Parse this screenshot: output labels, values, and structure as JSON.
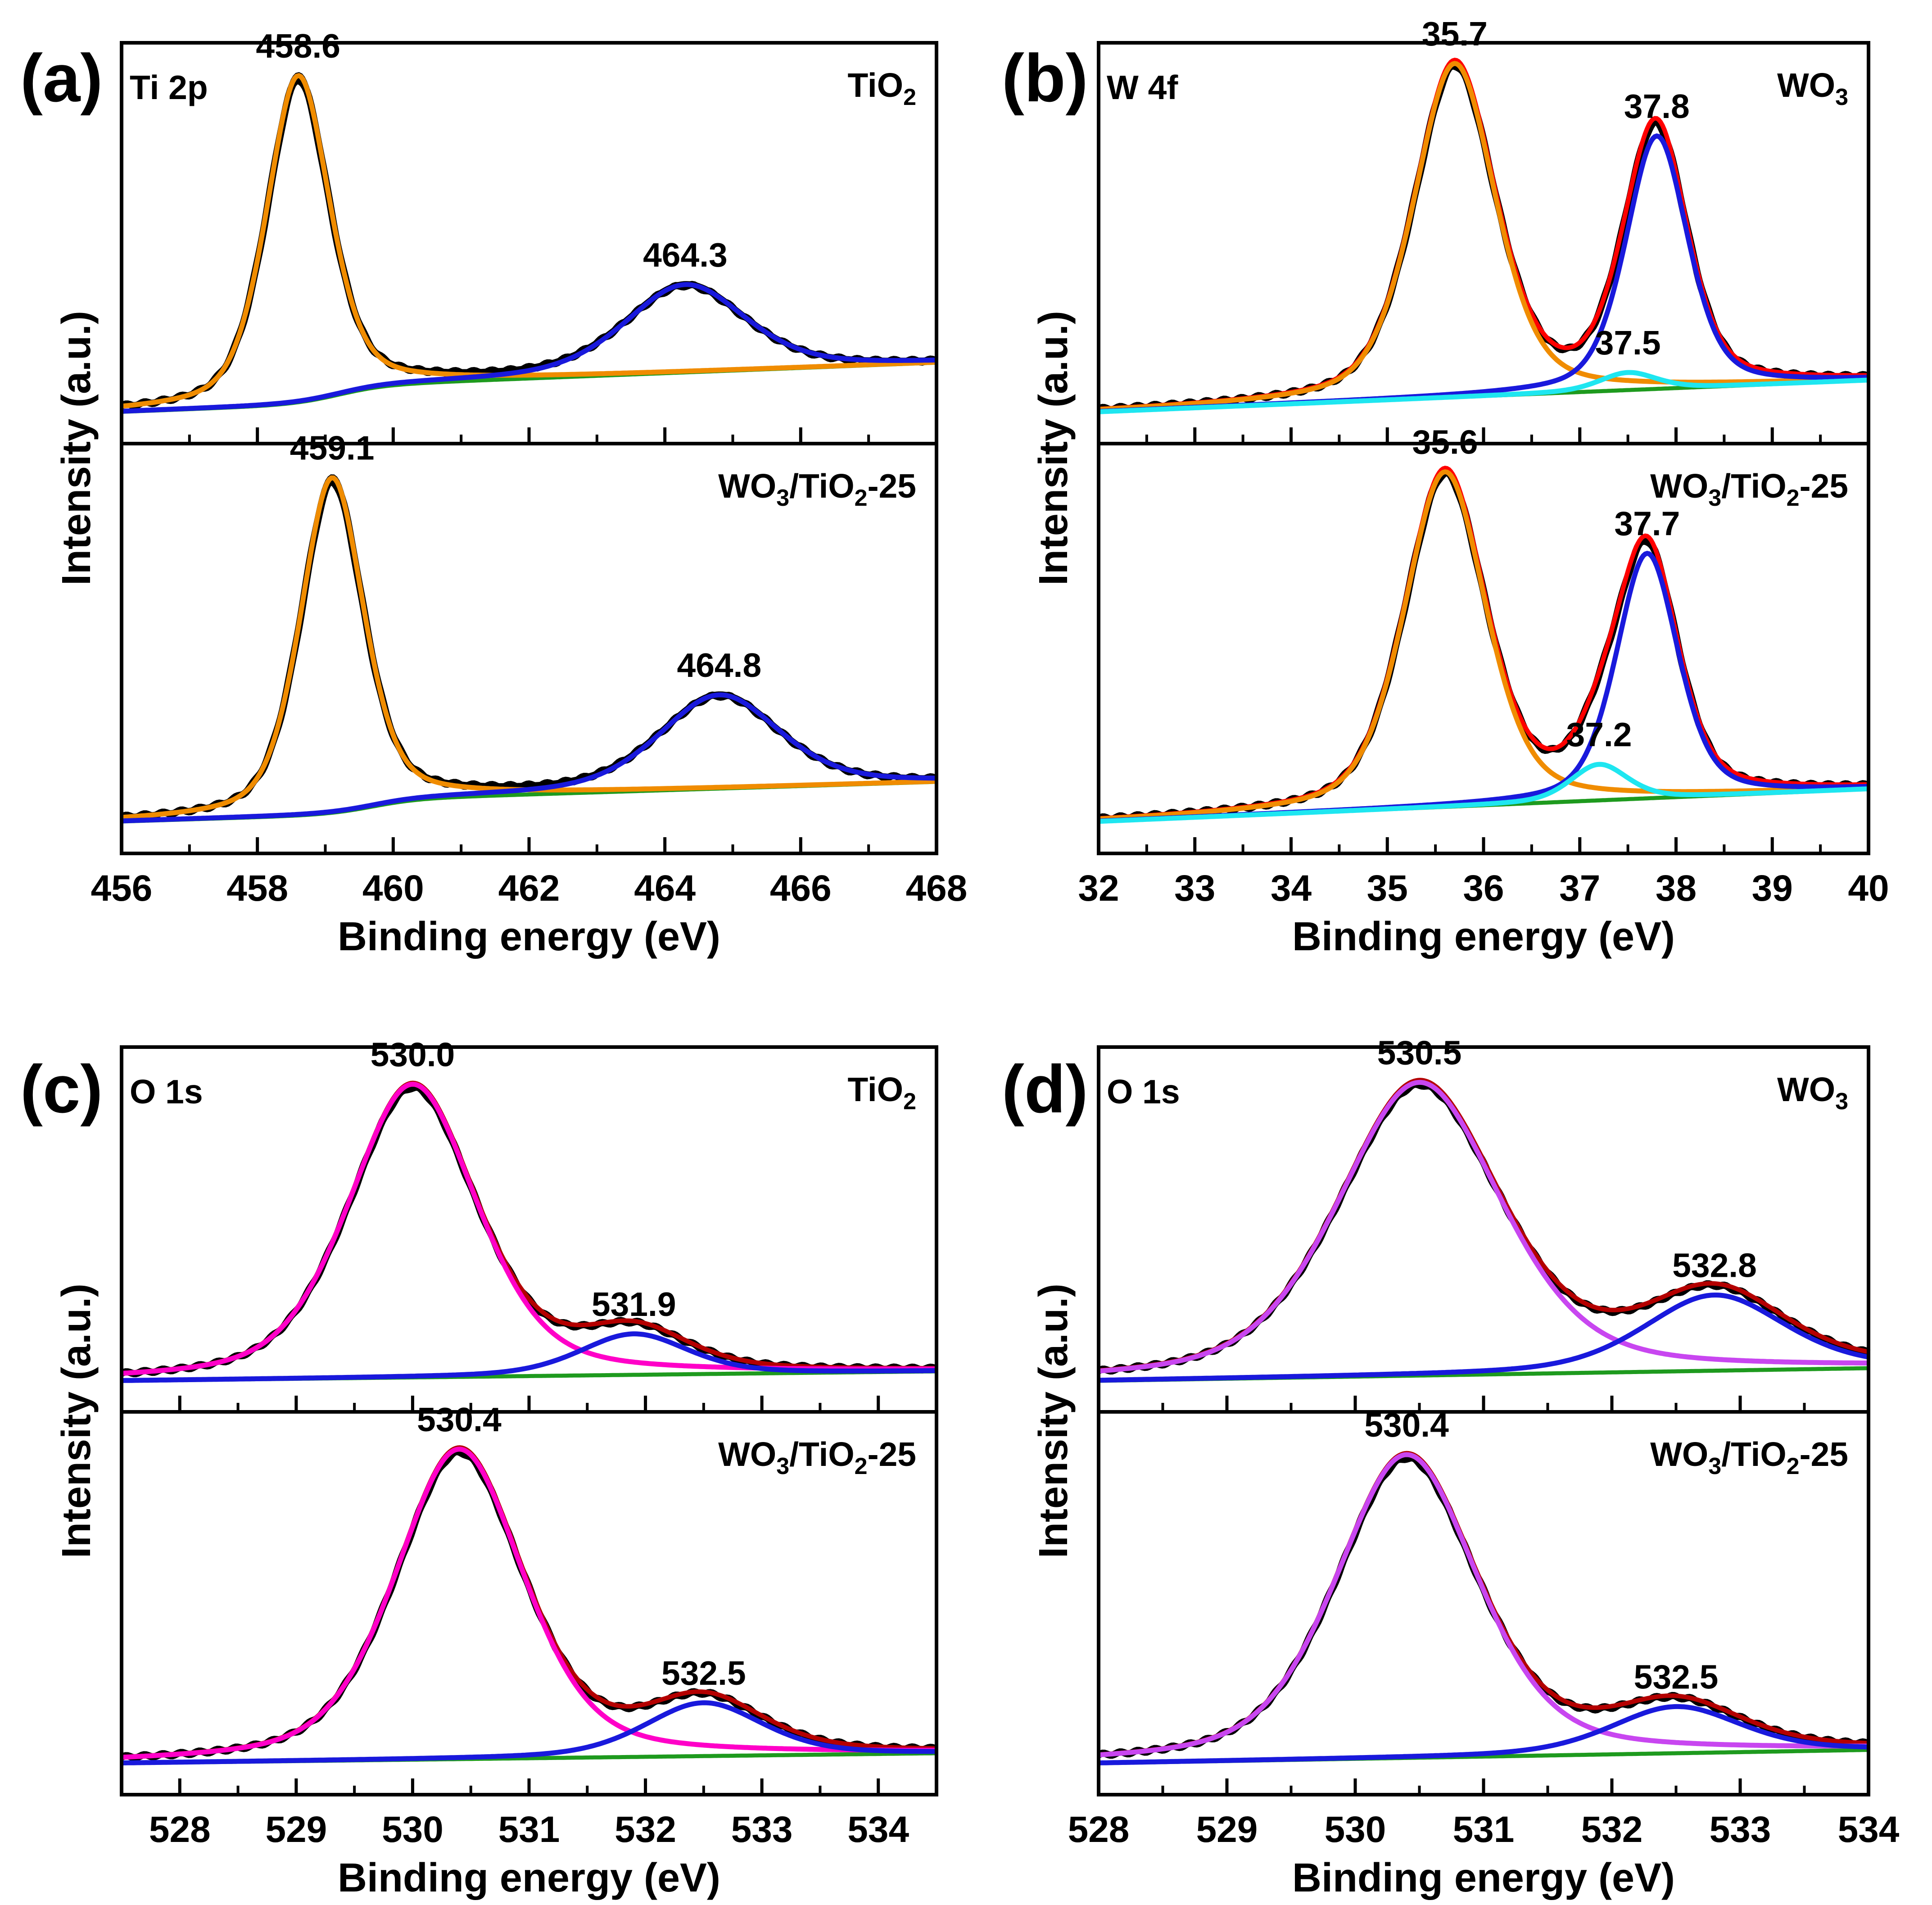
{
  "chart_data": [
    {
      "id": "a",
      "type": "line",
      "panel_label": "(a)",
      "xlabel": "Binding energy (eV)",
      "ylabel": "Intensity (a.u.)",
      "xlim": [
        456,
        468
      ],
      "xticks": [
        "456",
        "458",
        "460",
        "462",
        "464",
        "466",
        "468"
      ],
      "minor_step": 1,
      "element_label": "Ti 2p",
      "subpanels": [
        {
          "sample": "TiO2",
          "sample_parts": [
            [
              "TiO",
              ""
            ],
            [
              "2",
              "sub"
            ]
          ],
          "baseline": {
            "y0": 0.02,
            "y1": 0.11,
            "step_at": 459.2,
            "step": 0.05
          },
          "peaks": [
            {
              "center": 458.6,
              "label": "458.6",
              "height": 0.93,
              "width": 0.55,
              "color": "#f08c00"
            },
            {
              "center": 464.3,
              "label": "464.3",
              "height": 0.25,
              "width": 1.05,
              "color": "#1919dc"
            }
          ],
          "envelope_color": "#000000"
        },
        {
          "sample": "WO3/TiO2-25",
          "sample_parts": [
            [
              "WO",
              ""
            ],
            [
              "3",
              "sub"
            ],
            [
              "/TiO",
              ""
            ],
            [
              "2",
              "sub"
            ],
            [
              "-25",
              ""
            ]
          ],
          "baseline": {
            "y0": 0.02,
            "y1": 0.09,
            "step_at": 459.7,
            "step": 0.04
          },
          "peaks": [
            {
              "center": 459.1,
              "label": "459.1",
              "height": 0.93,
              "width": 0.55,
              "color": "#f08c00"
            },
            {
              "center": 464.8,
              "label": "464.8",
              "height": 0.26,
              "width": 1.05,
              "color": "#1919dc"
            }
          ],
          "envelope_color": "#000000"
        }
      ]
    },
    {
      "id": "b",
      "type": "line",
      "panel_label": "(b)",
      "xlabel": "Binding energy (eV)",
      "ylabel": "Intensity (a.u.)",
      "xlim": [
        32,
        40
      ],
      "xticks": [
        "32",
        "33",
        "34",
        "35",
        "36",
        "37",
        "38",
        "39",
        "40"
      ],
      "minor_step": 0.5,
      "element_label": "W 4f",
      "subpanels": [
        {
          "sample": "WO3",
          "sample_parts": [
            [
              "WO",
              ""
            ],
            [
              "3",
              "sub"
            ]
          ],
          "baseline": {
            "y0": 0.02,
            "y1": 0.11,
            "step_at": 37.5,
            "step": 0.0
          },
          "peaks": [
            {
              "center": 35.7,
              "label": "35.7",
              "height": 0.95,
              "width": 0.5,
              "color": "#f08c00"
            },
            {
              "center": 37.8,
              "label": "37.8",
              "height": 0.72,
              "width": 0.38,
              "color": "#1919dc"
            },
            {
              "center": 37.5,
              "label": "37.5",
              "height": 0.05,
              "width": 0.35,
              "color": "#1ee6f0"
            }
          ],
          "envelope_color": "#ff0000"
        },
        {
          "sample": "WO3/TiO2-25",
          "sample_parts": [
            [
              "WO",
              ""
            ],
            [
              "3",
              "sub"
            ],
            [
              "/TiO",
              ""
            ],
            [
              "2",
              "sub"
            ],
            [
              "-25",
              ""
            ]
          ],
          "baseline": {
            "y0": 0.02,
            "y1": 0.11,
            "step_at": 37.0,
            "step": 0.0
          },
          "peaks": [
            {
              "center": 35.6,
              "label": "35.6",
              "height": 0.93,
              "width": 0.5,
              "color": "#f08c00"
            },
            {
              "center": 37.7,
              "label": "37.7",
              "height": 0.68,
              "width": 0.38,
              "color": "#1919dc"
            },
            {
              "center": 37.2,
              "label": "37.2",
              "height": 0.1,
              "width": 0.35,
              "color": "#1ee6f0"
            }
          ],
          "envelope_color": "#ff0000"
        }
      ]
    },
    {
      "id": "c",
      "type": "line",
      "panel_label": "(c)",
      "xlabel": "Binding energy (eV)",
      "ylabel": "Intensity (a.u.)",
      "xlim": [
        527.5,
        534.5
      ],
      "xticks": [
        "528",
        "529",
        "530",
        "531",
        "532",
        "533",
        "534"
      ],
      "minor_step": 0.5,
      "element_label": "O 1s",
      "subpanels": [
        {
          "sample": "TiO2",
          "sample_parts": [
            [
              "TiO",
              ""
            ],
            [
              "2",
              "sub"
            ]
          ],
          "baseline": {
            "y0": 0.02,
            "y1": 0.05,
            "step_at": 531.0,
            "step": 0.0
          },
          "peaks": [
            {
              "center": 530.0,
              "label": "530.0",
              "height": 0.93,
              "width": 0.65,
              "color": "#ff00c8"
            },
            {
              "center": 531.9,
              "label": "531.9",
              "height": 0.13,
              "width": 0.55,
              "color": "#1919dc"
            }
          ],
          "envelope_color": "#b40000"
        },
        {
          "sample": "WO3/TiO2-25",
          "sample_parts": [
            [
              "WO",
              ""
            ],
            [
              "3",
              "sub"
            ],
            [
              "/TiO",
              ""
            ],
            [
              "2",
              "sub"
            ],
            [
              "-25",
              ""
            ]
          ],
          "baseline": {
            "y0": 0.02,
            "y1": 0.05,
            "step_at": 531.0,
            "step": 0.0
          },
          "peaks": [
            {
              "center": 530.4,
              "label": "530.4",
              "height": 0.93,
              "width": 0.65,
              "color": "#ff00c8"
            },
            {
              "center": 532.5,
              "label": "532.5",
              "height": 0.16,
              "width": 0.6,
              "color": "#1919dc"
            }
          ],
          "envelope_color": "#b40000"
        }
      ]
    },
    {
      "id": "d",
      "type": "line",
      "panel_label": "(d)",
      "xlabel": "Binding energy (eV)",
      "ylabel": "Intensity (a.u.)",
      "xlim": [
        528,
        534
      ],
      "xticks": [
        "528",
        "529",
        "530",
        "531",
        "532",
        "533",
        "534"
      ],
      "minor_step": 0.5,
      "element_label": "O 1s",
      "subpanels": [
        {
          "sample": "WO3",
          "sample_parts": [
            [
              "WO",
              ""
            ],
            [
              "3",
              "sub"
            ]
          ],
          "baseline": {
            "y0": 0.02,
            "y1": 0.06,
            "step_at": 531.0,
            "step": 0.0
          },
          "peaks": [
            {
              "center": 530.5,
              "label": "530.5",
              "height": 0.93,
              "width": 0.75,
              "color": "#c846f0"
            },
            {
              "center": 532.8,
              "label": "532.8",
              "height": 0.24,
              "width": 0.65,
              "color": "#1919dc"
            }
          ],
          "envelope_color": "#b40000"
        },
        {
          "sample": "WO3/TiO2-25",
          "sample_parts": [
            [
              "WO",
              ""
            ],
            [
              "3",
              "sub"
            ],
            [
              "/TiO",
              ""
            ],
            [
              "2",
              "sub"
            ],
            [
              "-25",
              ""
            ]
          ],
          "baseline": {
            "y0": 0.02,
            "y1": 0.06,
            "step_at": 531.0,
            "step": 0.0
          },
          "peaks": [
            {
              "center": 530.4,
              "label": "530.4",
              "height": 0.91,
              "width": 0.65,
              "color": "#c846f0"
            },
            {
              "center": 532.5,
              "label": "532.5",
              "height": 0.14,
              "width": 0.6,
              "color": "#1919dc"
            }
          ],
          "envelope_color": "#b40000"
        }
      ]
    }
  ],
  "baseline_color": "#1e9a1e"
}
